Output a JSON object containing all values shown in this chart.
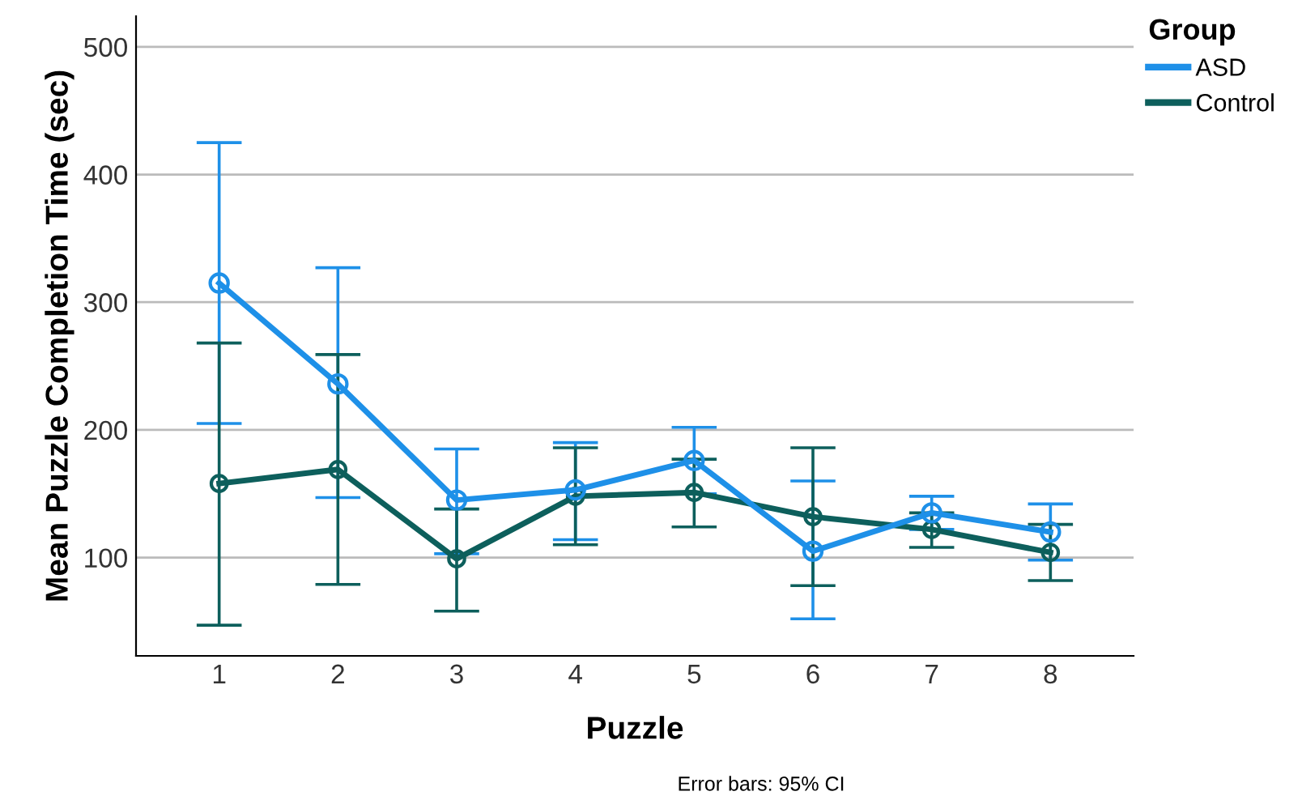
{
  "chart_data": {
    "type": "line",
    "xlabel": "Puzzle",
    "ylabel": "Mean Puzzle Completion Time (sec)",
    "legend_title": "Group",
    "legend": "top right",
    "grid": "y",
    "marker": "circle",
    "line_style": "solid",
    "categories": [
      "1",
      "2",
      "3",
      "4",
      "5",
      "6",
      "7",
      "8"
    ],
    "ylim": [
      23,
      524
    ],
    "yticks": [
      100,
      200,
      300,
      400,
      500
    ],
    "series": [
      {
        "name": "ASD",
        "color": "#1e90e8",
        "values": [
          315,
          236,
          145,
          153,
          176,
          105,
          135,
          120
        ],
        "errors": [
          [
            205,
            425
          ],
          [
            147,
            327
          ],
          [
            103,
            185
          ],
          [
            114,
            190
          ],
          [
            150,
            202
          ],
          [
            52,
            160
          ],
          [
            122,
            148
          ],
          [
            98,
            142
          ]
        ]
      },
      {
        "name": "Control",
        "color": "#0d5f5c",
        "values": [
          158,
          169,
          99,
          148,
          151,
          132,
          122,
          104
        ],
        "errors": [
          [
            47,
            268
          ],
          [
            79,
            259
          ],
          [
            58,
            138
          ],
          [
            110,
            186
          ],
          [
            124,
            177
          ],
          [
            78,
            186
          ],
          [
            108,
            135
          ],
          [
            82,
            126
          ]
        ]
      }
    ],
    "annotations": [
      "Error bars: 95% CI"
    ]
  }
}
